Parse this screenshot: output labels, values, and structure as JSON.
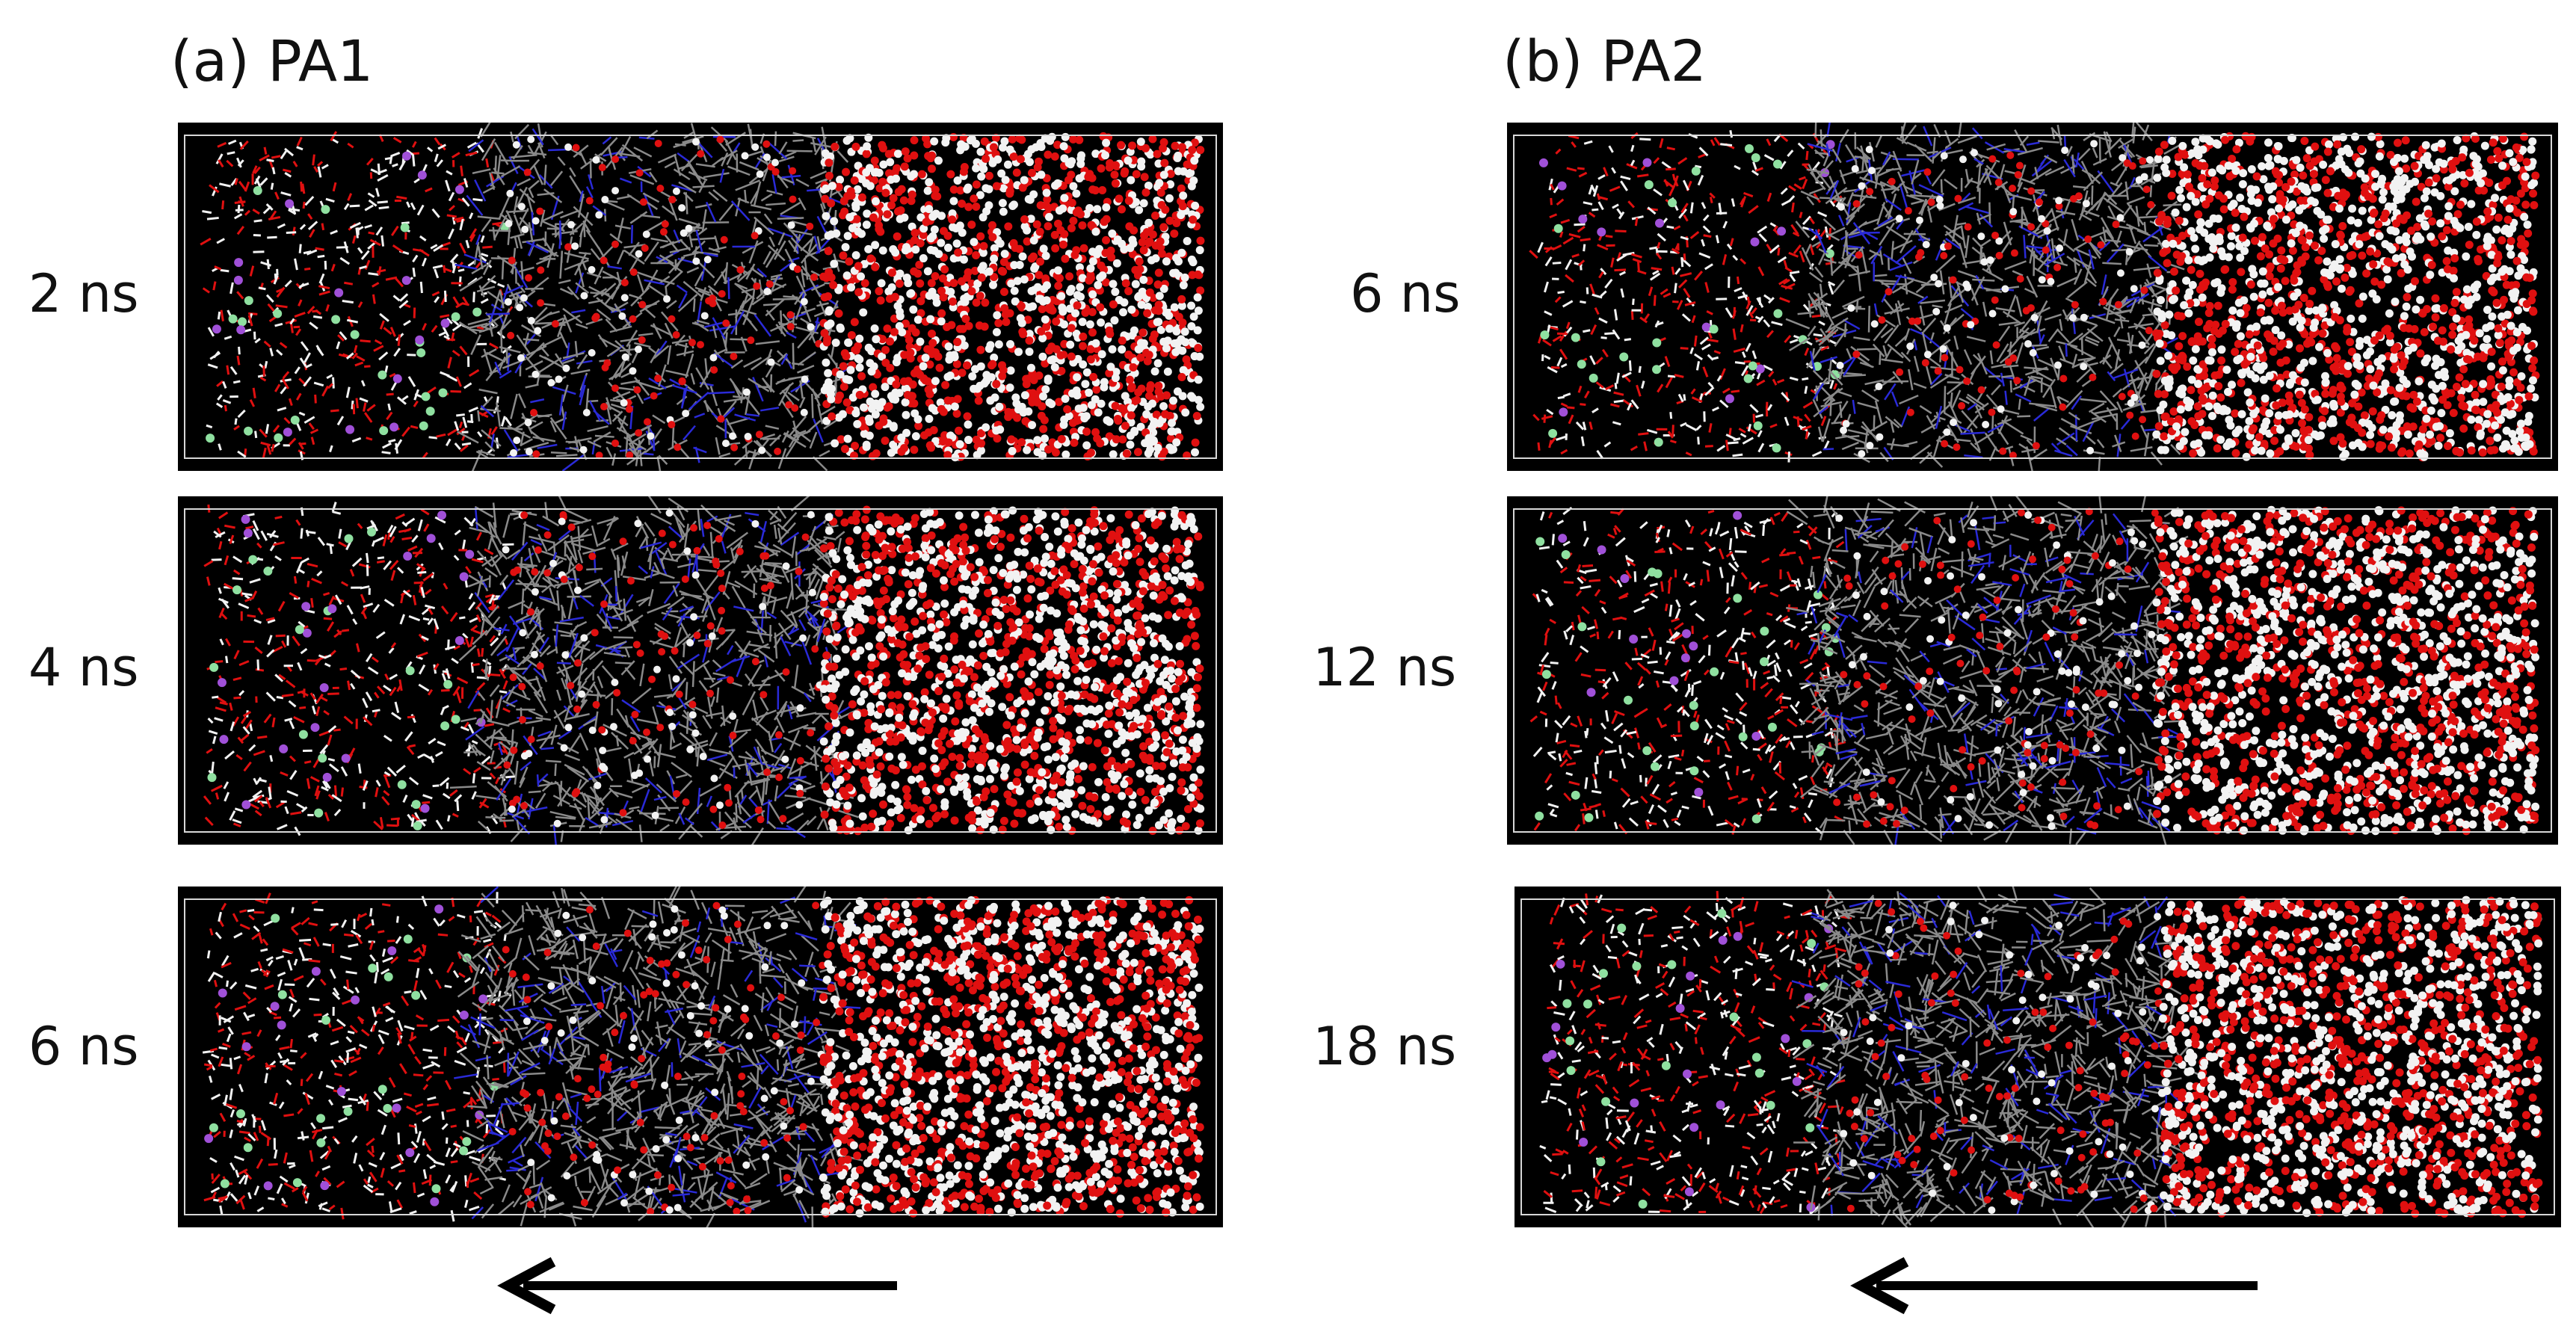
{
  "panels": [
    {
      "title": "(a) PA1",
      "times": [
        "2 ns",
        "4 ns",
        "6 ns"
      ]
    },
    {
      "title": "(b) PA2",
      "times": [
        "6 ns",
        "12 ns",
        "18 ns"
      ]
    }
  ],
  "arrow_direction": "left",
  "colors": {
    "background": "#000000",
    "water_oxygen": "#e01010",
    "water_hydrogen": "#f2f2f2",
    "polymer_carbon": "#8a8a8a",
    "polymer_nitrogen": "#2a2ad8",
    "ion_green": "#8fe0a0",
    "ion_purple": "#a050d8",
    "cell_border": "#d8d8d8",
    "arrow": "#000000"
  }
}
